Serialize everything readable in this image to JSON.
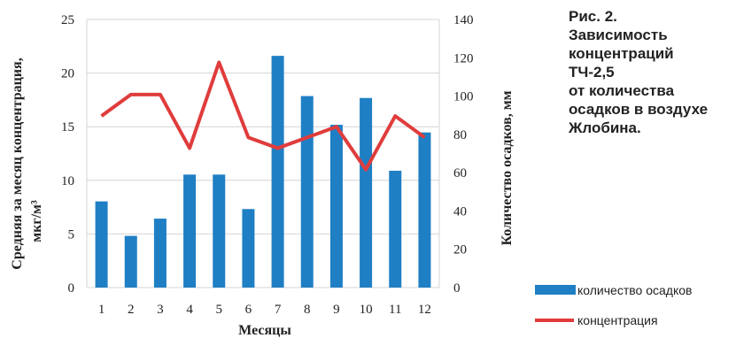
{
  "caption": {
    "lines": [
      "Рис. 2.",
      "Зависимость",
      "концентраций",
      "ТЧ-2,5",
      "от количества",
      "осадков в воздухе",
      "Жлобина."
    ]
  },
  "chart_data": {
    "type": "bar",
    "categories": [
      "1",
      "2",
      "3",
      "4",
      "5",
      "6",
      "7",
      "8",
      "9",
      "10",
      "11",
      "12"
    ],
    "series": [
      {
        "name": "количество осадков",
        "type": "bar",
        "axis": "right",
        "color": "#1f7fc4",
        "values": [
          45,
          27,
          36,
          59,
          59,
          41,
          121,
          100,
          85,
          99,
          61,
          81
        ]
      },
      {
        "name": "концентрация",
        "type": "line",
        "axis": "left",
        "color": "#e03c3c",
        "values": [
          16,
          18,
          18,
          13,
          21,
          14,
          13,
          14,
          15,
          11,
          16,
          14
        ]
      }
    ],
    "xlabel": "Месяцы",
    "ylabel_left": "Средняя за месяц концентрация,",
    "ylabel_left_unit": "мкг/м³",
    "ylabel_right": "Количество осадков, мм",
    "ylim_left": [
      0,
      25
    ],
    "yticks_left": [
      "0",
      "5",
      "10",
      "15",
      "20",
      "25"
    ],
    "ylim_right": [
      0,
      140
    ],
    "yticks_right": [
      "0",
      "20",
      "40",
      "60",
      "80",
      "100",
      "120",
      "140"
    ],
    "grid": true,
    "legend": "bottom-right"
  }
}
